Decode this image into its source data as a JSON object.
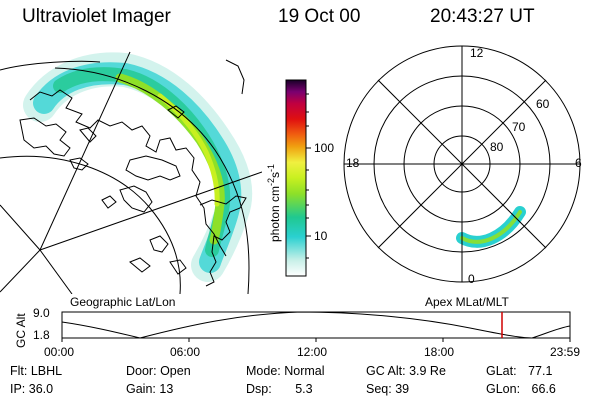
{
  "header": {
    "instrument": "Ultraviolet Imager",
    "date": "19 Oct 00",
    "time": "20:43:27 UT"
  },
  "colorbar": {
    "label_main": "photon cm",
    "label_exp1": "-2",
    "label_mid": "s",
    "label_exp2": "-1",
    "ticks": [
      "100",
      "10"
    ],
    "scale": "log",
    "colors": [
      "#ffffff",
      "#c8f0e8",
      "#2ad0d0",
      "#20c890",
      "#8ee028",
      "#c8f020",
      "#f0f040",
      "#f0a010",
      "#f06010",
      "#e01010",
      "#c00040",
      "#7a0070",
      "#180028"
    ]
  },
  "geographic_panel": {
    "label": "Geographic Lat/Lon",
    "projection": "geographic"
  },
  "polar_panel": {
    "label": "Apex MLat/MLT",
    "mlt_labels": [
      "12",
      "18",
      "6",
      "0"
    ],
    "lat_labels": [
      "60",
      "70",
      "80"
    ]
  },
  "altitude_plot": {
    "ylabel": "GC Alt",
    "yticks": [
      "9.0",
      "1.8"
    ],
    "xticks": [
      "00:00",
      "06:00",
      "12:00",
      "18:00",
      "23:59"
    ],
    "current_marker_color": "#d00000"
  },
  "status": {
    "row1": [
      {
        "label": "Flt:",
        "value": "LBHL"
      },
      {
        "label": "Door:",
        "value": "Open"
      },
      {
        "label": "Mode:",
        "value": "Normal"
      },
      {
        "label": "GC Alt:",
        "value": "3.9 Re"
      },
      {
        "label": "GLat:",
        "value": "77.1"
      }
    ],
    "row2": [
      {
        "label": "IP:",
        "value": "36.0"
      },
      {
        "label": "Gain:",
        "value": "13"
      },
      {
        "label": "Dsp:",
        "value": "5.3"
      },
      {
        "label": "Seq:",
        "value": "39"
      },
      {
        "label": "GLon:",
        "value": "66.6"
      }
    ]
  }
}
